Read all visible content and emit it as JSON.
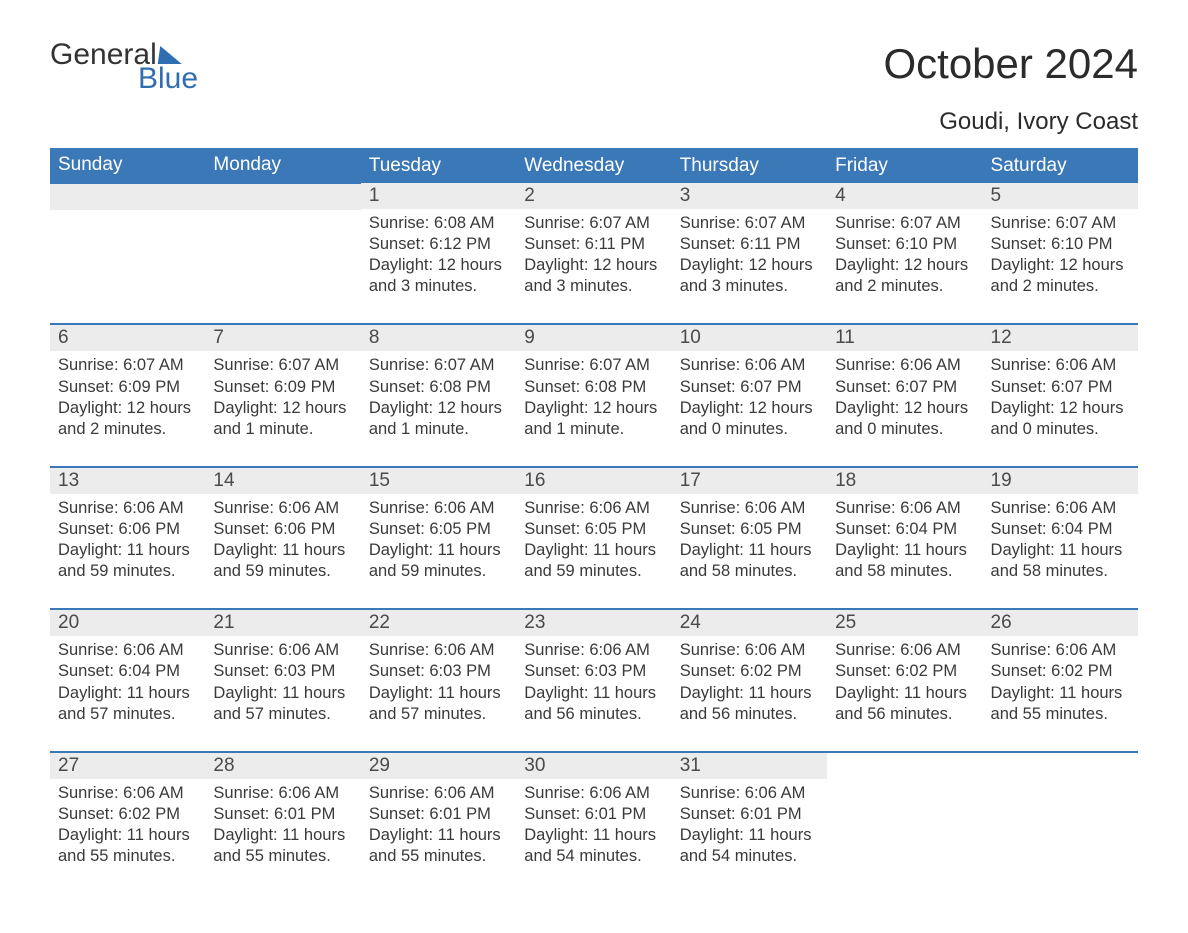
{
  "brand": {
    "text1": "General",
    "text2": "Blue"
  },
  "title": "October 2024",
  "location": "Goudi, Ivory Coast",
  "colors": {
    "header_bg": "#3b78b8",
    "header_text": "#ffffff",
    "daynum_bg": "#ececec",
    "rule": "#3b78b8",
    "body_text": "#3a3a3a",
    "page_bg": "#ffffff",
    "brand_blue": "#2f6eb0"
  },
  "font": {
    "family": "Arial",
    "th_size_pt": 14,
    "body_size_pt": 12,
    "title_size_pt": 32,
    "location_size_pt": 18
  },
  "day_headers": [
    "Sunday",
    "Monday",
    "Tuesday",
    "Wednesday",
    "Thursday",
    "Friday",
    "Saturday"
  ],
  "weeks": [
    [
      null,
      null,
      {
        "n": "1",
        "sunrise": "Sunrise: 6:08 AM",
        "sunset": "Sunset: 6:12 PM",
        "dl1": "Daylight: 12 hours",
        "dl2": "and 3 minutes."
      },
      {
        "n": "2",
        "sunrise": "Sunrise: 6:07 AM",
        "sunset": "Sunset: 6:11 PM",
        "dl1": "Daylight: 12 hours",
        "dl2": "and 3 minutes."
      },
      {
        "n": "3",
        "sunrise": "Sunrise: 6:07 AM",
        "sunset": "Sunset: 6:11 PM",
        "dl1": "Daylight: 12 hours",
        "dl2": "and 3 minutes."
      },
      {
        "n": "4",
        "sunrise": "Sunrise: 6:07 AM",
        "sunset": "Sunset: 6:10 PM",
        "dl1": "Daylight: 12 hours",
        "dl2": "and 2 minutes."
      },
      {
        "n": "5",
        "sunrise": "Sunrise: 6:07 AM",
        "sunset": "Sunset: 6:10 PM",
        "dl1": "Daylight: 12 hours",
        "dl2": "and 2 minutes."
      }
    ],
    [
      {
        "n": "6",
        "sunrise": "Sunrise: 6:07 AM",
        "sunset": "Sunset: 6:09 PM",
        "dl1": "Daylight: 12 hours",
        "dl2": "and 2 minutes."
      },
      {
        "n": "7",
        "sunrise": "Sunrise: 6:07 AM",
        "sunset": "Sunset: 6:09 PM",
        "dl1": "Daylight: 12 hours",
        "dl2": "and 1 minute."
      },
      {
        "n": "8",
        "sunrise": "Sunrise: 6:07 AM",
        "sunset": "Sunset: 6:08 PM",
        "dl1": "Daylight: 12 hours",
        "dl2": "and 1 minute."
      },
      {
        "n": "9",
        "sunrise": "Sunrise: 6:07 AM",
        "sunset": "Sunset: 6:08 PM",
        "dl1": "Daylight: 12 hours",
        "dl2": "and 1 minute."
      },
      {
        "n": "10",
        "sunrise": "Sunrise: 6:06 AM",
        "sunset": "Sunset: 6:07 PM",
        "dl1": "Daylight: 12 hours",
        "dl2": "and 0 minutes."
      },
      {
        "n": "11",
        "sunrise": "Sunrise: 6:06 AM",
        "sunset": "Sunset: 6:07 PM",
        "dl1": "Daylight: 12 hours",
        "dl2": "and 0 minutes."
      },
      {
        "n": "12",
        "sunrise": "Sunrise: 6:06 AM",
        "sunset": "Sunset: 6:07 PM",
        "dl1": "Daylight: 12 hours",
        "dl2": "and 0 minutes."
      }
    ],
    [
      {
        "n": "13",
        "sunrise": "Sunrise: 6:06 AM",
        "sunset": "Sunset: 6:06 PM",
        "dl1": "Daylight: 11 hours",
        "dl2": "and 59 minutes."
      },
      {
        "n": "14",
        "sunrise": "Sunrise: 6:06 AM",
        "sunset": "Sunset: 6:06 PM",
        "dl1": "Daylight: 11 hours",
        "dl2": "and 59 minutes."
      },
      {
        "n": "15",
        "sunrise": "Sunrise: 6:06 AM",
        "sunset": "Sunset: 6:05 PM",
        "dl1": "Daylight: 11 hours",
        "dl2": "and 59 minutes."
      },
      {
        "n": "16",
        "sunrise": "Sunrise: 6:06 AM",
        "sunset": "Sunset: 6:05 PM",
        "dl1": "Daylight: 11 hours",
        "dl2": "and 59 minutes."
      },
      {
        "n": "17",
        "sunrise": "Sunrise: 6:06 AM",
        "sunset": "Sunset: 6:05 PM",
        "dl1": "Daylight: 11 hours",
        "dl2": "and 58 minutes."
      },
      {
        "n": "18",
        "sunrise": "Sunrise: 6:06 AM",
        "sunset": "Sunset: 6:04 PM",
        "dl1": "Daylight: 11 hours",
        "dl2": "and 58 minutes."
      },
      {
        "n": "19",
        "sunrise": "Sunrise: 6:06 AM",
        "sunset": "Sunset: 6:04 PM",
        "dl1": "Daylight: 11 hours",
        "dl2": "and 58 minutes."
      }
    ],
    [
      {
        "n": "20",
        "sunrise": "Sunrise: 6:06 AM",
        "sunset": "Sunset: 6:04 PM",
        "dl1": "Daylight: 11 hours",
        "dl2": "and 57 minutes."
      },
      {
        "n": "21",
        "sunrise": "Sunrise: 6:06 AM",
        "sunset": "Sunset: 6:03 PM",
        "dl1": "Daylight: 11 hours",
        "dl2": "and 57 minutes."
      },
      {
        "n": "22",
        "sunrise": "Sunrise: 6:06 AM",
        "sunset": "Sunset: 6:03 PM",
        "dl1": "Daylight: 11 hours",
        "dl2": "and 57 minutes."
      },
      {
        "n": "23",
        "sunrise": "Sunrise: 6:06 AM",
        "sunset": "Sunset: 6:03 PM",
        "dl1": "Daylight: 11 hours",
        "dl2": "and 56 minutes."
      },
      {
        "n": "24",
        "sunrise": "Sunrise: 6:06 AM",
        "sunset": "Sunset: 6:02 PM",
        "dl1": "Daylight: 11 hours",
        "dl2": "and 56 minutes."
      },
      {
        "n": "25",
        "sunrise": "Sunrise: 6:06 AM",
        "sunset": "Sunset: 6:02 PM",
        "dl1": "Daylight: 11 hours",
        "dl2": "and 56 minutes."
      },
      {
        "n": "26",
        "sunrise": "Sunrise: 6:06 AM",
        "sunset": "Sunset: 6:02 PM",
        "dl1": "Daylight: 11 hours",
        "dl2": "and 55 minutes."
      }
    ],
    [
      {
        "n": "27",
        "sunrise": "Sunrise: 6:06 AM",
        "sunset": "Sunset: 6:02 PM",
        "dl1": "Daylight: 11 hours",
        "dl2": "and 55 minutes."
      },
      {
        "n": "28",
        "sunrise": "Sunrise: 6:06 AM",
        "sunset": "Sunset: 6:01 PM",
        "dl1": "Daylight: 11 hours",
        "dl2": "and 55 minutes."
      },
      {
        "n": "29",
        "sunrise": "Sunrise: 6:06 AM",
        "sunset": "Sunset: 6:01 PM",
        "dl1": "Daylight: 11 hours",
        "dl2": "and 55 minutes."
      },
      {
        "n": "30",
        "sunrise": "Sunrise: 6:06 AM",
        "sunset": "Sunset: 6:01 PM",
        "dl1": "Daylight: 11 hours",
        "dl2": "and 54 minutes."
      },
      {
        "n": "31",
        "sunrise": "Sunrise: 6:06 AM",
        "sunset": "Sunset: 6:01 PM",
        "dl1": "Daylight: 11 hours",
        "dl2": "and 54 minutes."
      },
      null,
      null
    ]
  ]
}
